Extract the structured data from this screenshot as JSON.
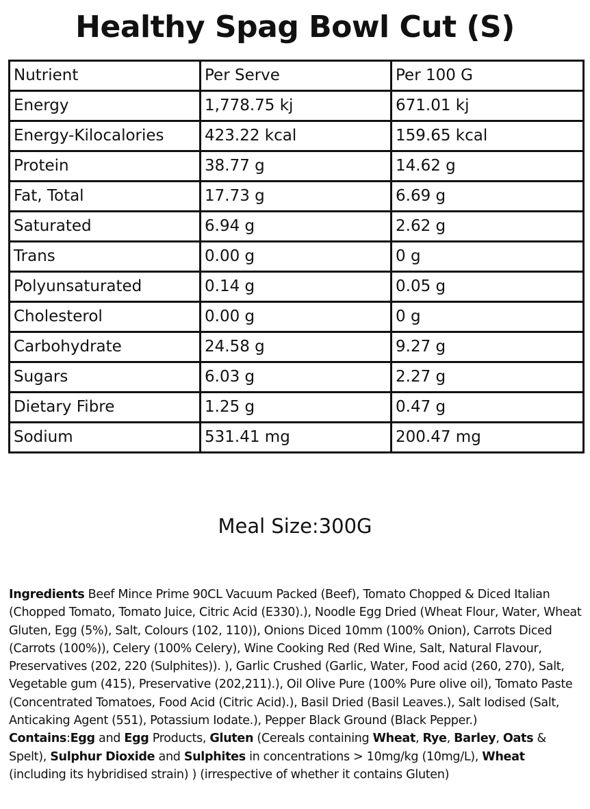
{
  "title": "Healthy Spag Bowl Cut (S)",
  "table": {
    "headers": [
      "Nutrient",
      "Per Serve",
      "Per 100 G"
    ],
    "rows": [
      [
        "Energy",
        "1,778.75 kj",
        "671.01 kj"
      ],
      [
        "Energy-Kilocalories",
        "423.22 kcal",
        "159.65 kcal"
      ],
      [
        "Protein",
        "38.77 g",
        "14.62 g"
      ],
      [
        "Fat, Total",
        "17.73 g",
        "6.69 g"
      ],
      [
        "Saturated",
        "6.94 g",
        "2.62 g"
      ],
      [
        "Trans",
        "0.00 g",
        "0 g"
      ],
      [
        "Polyunsaturated",
        "0.14 g",
        "0.05 g"
      ],
      [
        "Cholesterol",
        "0.00 g",
        "0 g"
      ],
      [
        "Carbohydrate",
        "24.58 g",
        "9.27 g"
      ],
      [
        "Sugars",
        "6.03 g",
        "2.27 g"
      ],
      [
        "Dietary Fibre",
        "1.25 g",
        "0.47 g"
      ],
      [
        "Sodium",
        "531.41 mg",
        "200.47 mg"
      ]
    ]
  },
  "meal_size": "Meal Size:300G",
  "ingredients": {
    "label": "Ingredients",
    "text": " Beef Mince Prime 90CL Vacuum Packed (Beef), Tomato Chopped & Diced Italian (Chopped Tomato, Tomato Juice, Citric Acid (E330).), Noodle Egg Dried (Wheat Flour, Water, Wheat Gluten, Egg (5%), Salt, Colours (102, 110)), Onions Diced 10mm (100% Onion), Carrots Diced (Carrots (100%)), Celery (100% Celery), Wine Cooking Red (Red Wine, Salt, Natural Flavour, Preservatives (202, 220 (Sulphites)). ), Garlic Crushed (Garlic, Water, Food acid (260, 270), Salt, Vegetable gum (415), Preservative (202,211).), Oil Olive Pure (100% Pure olive oil), Tomato Paste (Concentrated Tomatoes, Food Acid (Citric Acid).), Basil Dried (Basil Leaves.), Salt Iodised (Salt, Anticaking Agent (551), Potassium Iodate.), Pepper Black Ground (Black Pepper.)"
  },
  "contains": {
    "label": "Contains",
    "segments": [
      {
        "text": ":",
        "bold": false
      },
      {
        "text": "Egg",
        "bold": true
      },
      {
        "text": " and ",
        "bold": false
      },
      {
        "text": "Egg",
        "bold": true
      },
      {
        "text": " Products, ",
        "bold": false
      },
      {
        "text": "Gluten",
        "bold": true
      },
      {
        "text": " (Cereals containing ",
        "bold": false
      },
      {
        "text": "Wheat",
        "bold": true
      },
      {
        "text": ", ",
        "bold": false
      },
      {
        "text": "Rye",
        "bold": true
      },
      {
        "text": ", ",
        "bold": false
      },
      {
        "text": "Barley",
        "bold": true
      },
      {
        "text": ", ",
        "bold": false
      },
      {
        "text": "Oats",
        "bold": true
      },
      {
        "text": " & Spelt), ",
        "bold": false
      },
      {
        "text": "Sulphur Dioxide",
        "bold": true
      },
      {
        "text": " and ",
        "bold": false
      },
      {
        "text": "Sulphites",
        "bold": true
      },
      {
        "text": " in concentrations > 10mg/kg (10mg/L), ",
        "bold": false
      },
      {
        "text": "Wheat",
        "bold": true
      },
      {
        "text": " (including its hybridised strain) ) (irrespective of whether it contains Gluten)",
        "bold": false
      }
    ]
  }
}
